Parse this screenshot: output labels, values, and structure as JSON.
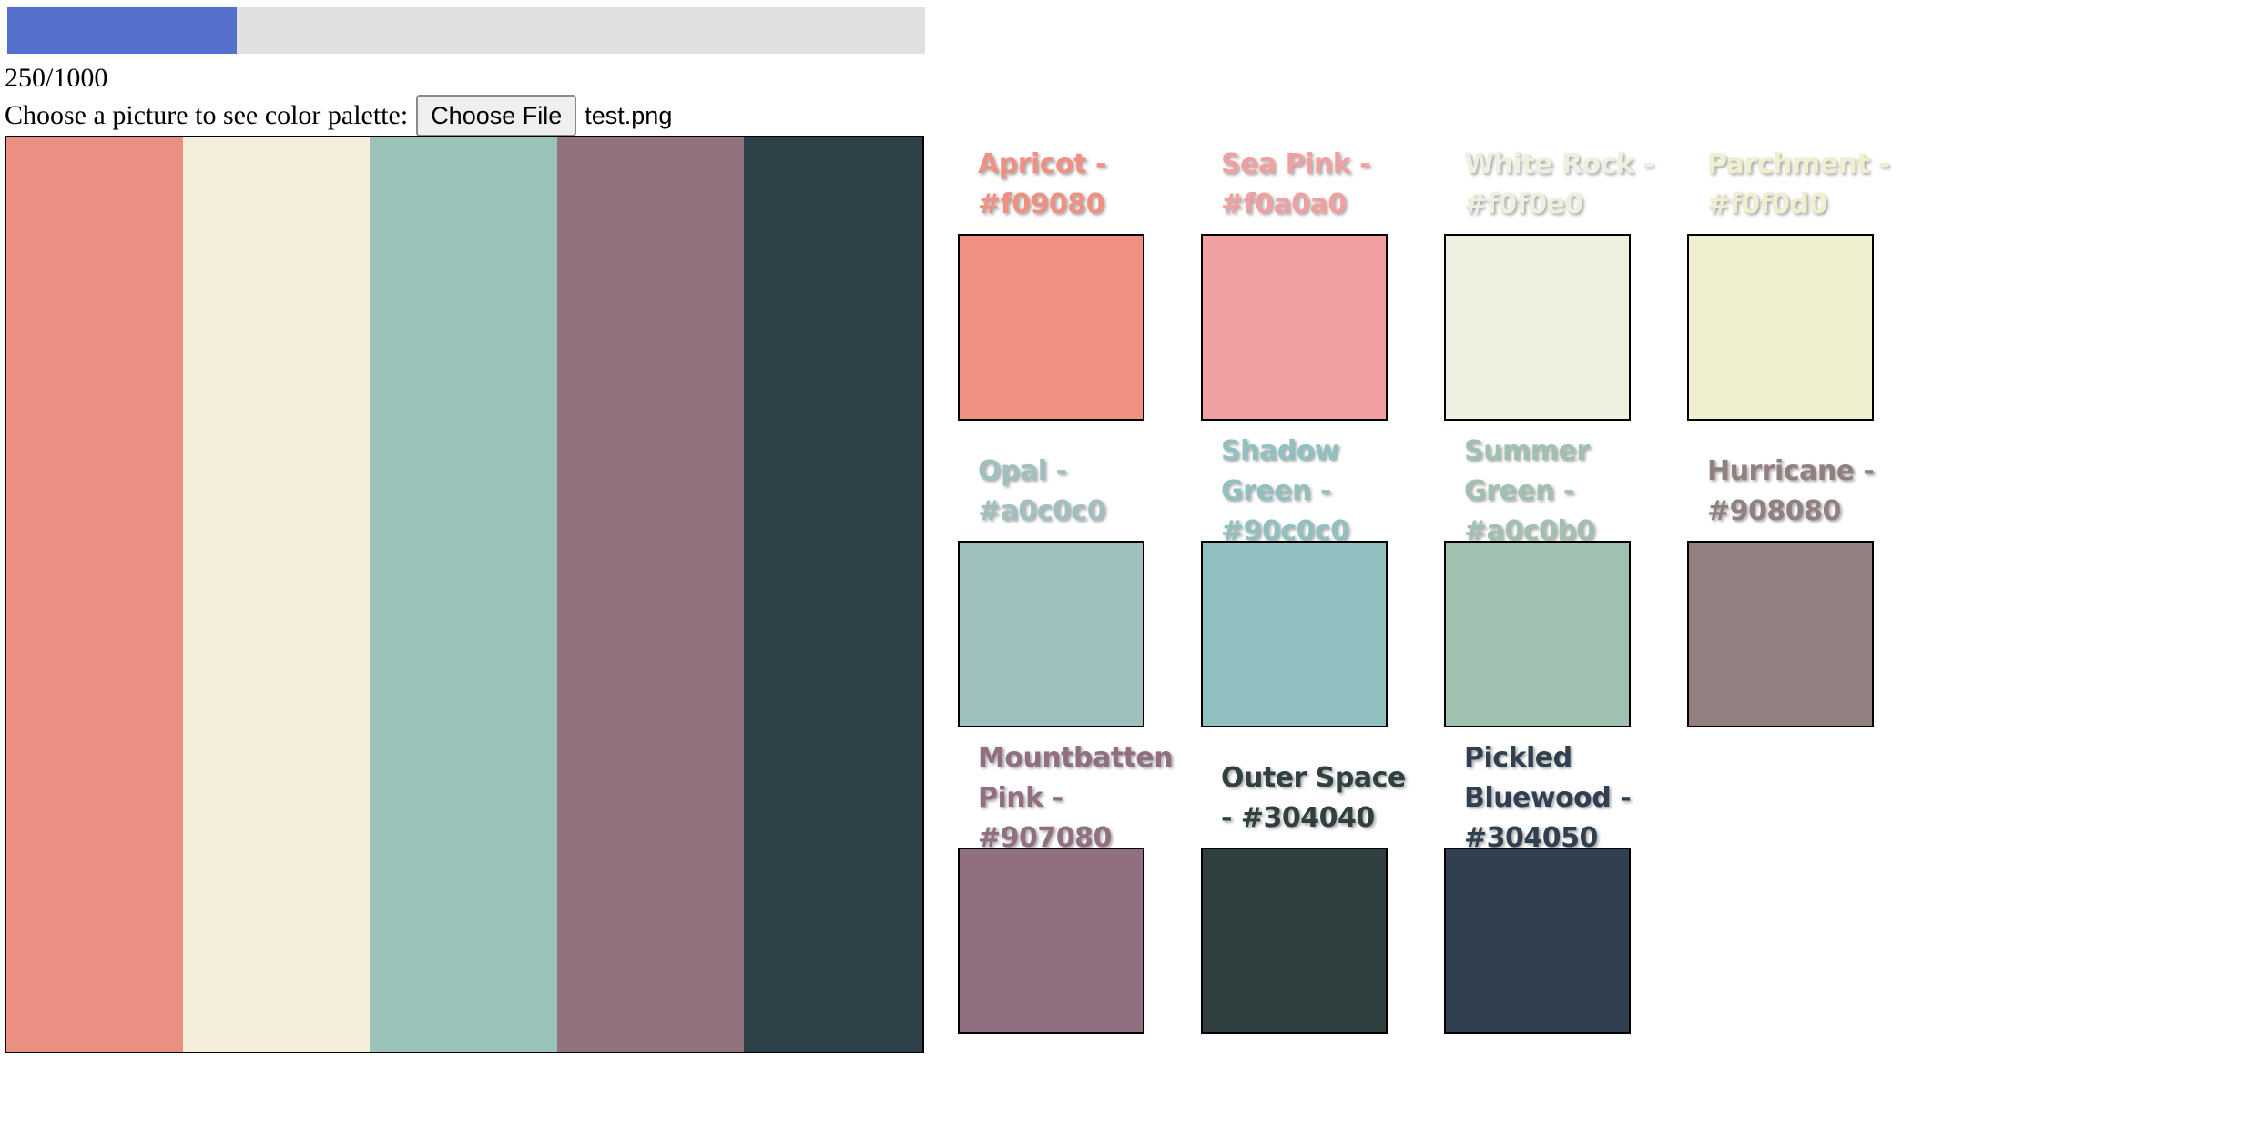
{
  "progress": {
    "value": 250,
    "max": 1000,
    "text": "250/1000",
    "fill_color": "#5570cc"
  },
  "chooser": {
    "label": "Choose a picture to see color palette:",
    "button_label": "Choose File",
    "file_name": "test.png"
  },
  "preview": {
    "stripes": [
      {
        "color": "#ea9083",
        "fraction": 0.193
      },
      {
        "color": "#f5eedb",
        "fraction": 0.204
      },
      {
        "color": "#9bc3ba",
        "fraction": 0.204
      },
      {
        "color": "#91737e",
        "fraction": 0.204
      },
      {
        "color": "#2e4048",
        "fraction": 0.195
      }
    ]
  },
  "palette": [
    {
      "name": "Apricot - #f09080",
      "color": "#f09080"
    },
    {
      "name": "Sea Pink - #f0a0a0",
      "color": "#f0a0a0"
    },
    {
      "name": "White Rock - #f0f0e0",
      "color": "#f0f0e0"
    },
    {
      "name": "Parchment - #f0f0d0",
      "color": "#f0f0d0"
    },
    {
      "name": "Opal - #a0c0c0",
      "color": "#a0c0c0"
    },
    {
      "name": "Shadow Green - #90c0c0",
      "color": "#90c0c0"
    },
    {
      "name": "Summer Green - #a0c0b0",
      "color": "#a0c0b0"
    },
    {
      "name": "Hurricane - #908080",
      "color": "#908080"
    },
    {
      "name": "Mountbatten Pink - #907080",
      "color": "#907080"
    },
    {
      "name": "Outer Space - #304040",
      "color": "#304040"
    },
    {
      "name": "Pickled Bluewood - #304050",
      "color": "#304050"
    }
  ]
}
